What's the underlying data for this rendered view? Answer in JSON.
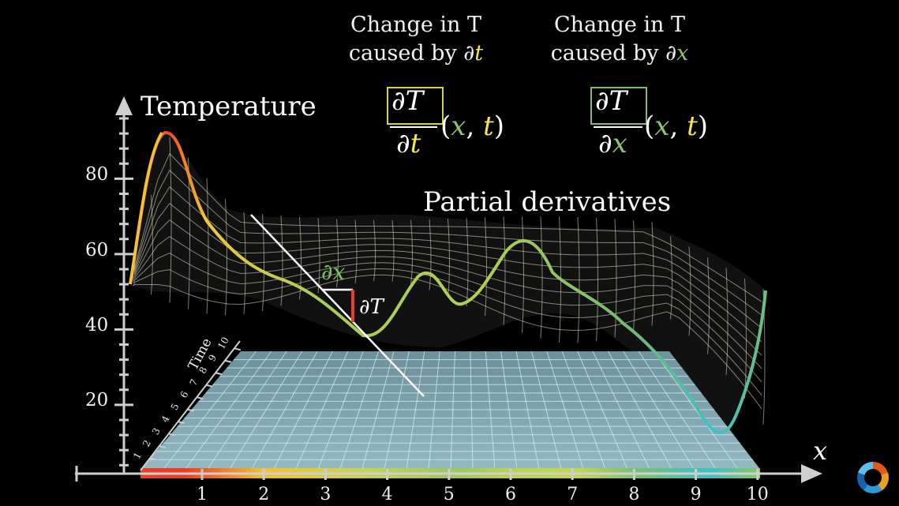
{
  "titles": {
    "change_dt_line1": "Change in T",
    "change_dt_line2_prefix": "caused by ∂",
    "change_dt_var": "t",
    "change_dx_line1": "Change in T",
    "change_dx_line2_prefix": "caused by ∂",
    "change_dx_var": "x",
    "partial_derivatives": "Partial derivatives"
  },
  "formula_t": {
    "numerator": "∂T",
    "denominator_d": "∂",
    "denominator_var": "t",
    "args_open": "(",
    "arg1": "x",
    "comma": ", ",
    "arg2": "t",
    "args_close": ")"
  },
  "formula_x": {
    "numerator": "∂T",
    "denominator_d": "∂",
    "denominator_var": "x",
    "args_open": "(",
    "arg1": "x",
    "comma": ", ",
    "arg2": "t",
    "args_close": ")"
  },
  "axes": {
    "y_label": "Temperature",
    "x_label": "x",
    "time_label": "Time",
    "y_ticks": [
      "80",
      "60",
      "40",
      "20"
    ],
    "x_ticks": [
      "1",
      "2",
      "3",
      "4",
      "5",
      "6",
      "7",
      "8",
      "9",
      "10"
    ],
    "time_ticks": [
      "1",
      "2",
      "3",
      "4",
      "5",
      "6",
      "7",
      "8",
      "9",
      "10"
    ]
  },
  "annotations": {
    "dx": "∂x",
    "dT": "∂T"
  },
  "colors": {
    "yellow": "#f4e84a",
    "green": "#8fc46f",
    "red": "#e8402a",
    "teal": "#3cc0c8",
    "floor": "#8fb8c8"
  }
}
